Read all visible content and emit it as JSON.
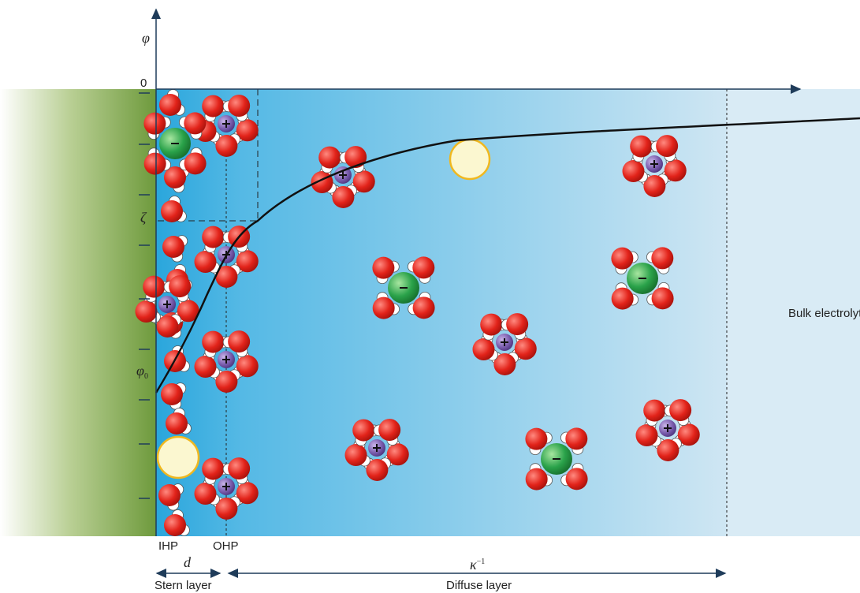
{
  "axis": {
    "potential": "φ",
    "zero": "0",
    "zeta": "ζ",
    "surface_potential": "φ",
    "surface_potential_subscript": "0"
  },
  "planes": {
    "inner": "IHP",
    "outer": "OHP"
  },
  "dimensions": {
    "stern_thickness": "d",
    "debye_length": "κ",
    "debye_length_exponent": "−1"
  },
  "regions": {
    "stern": "Stern layer",
    "diffuse": "Diffuse layer",
    "bulk": "Bulk electrolyte"
  }
}
